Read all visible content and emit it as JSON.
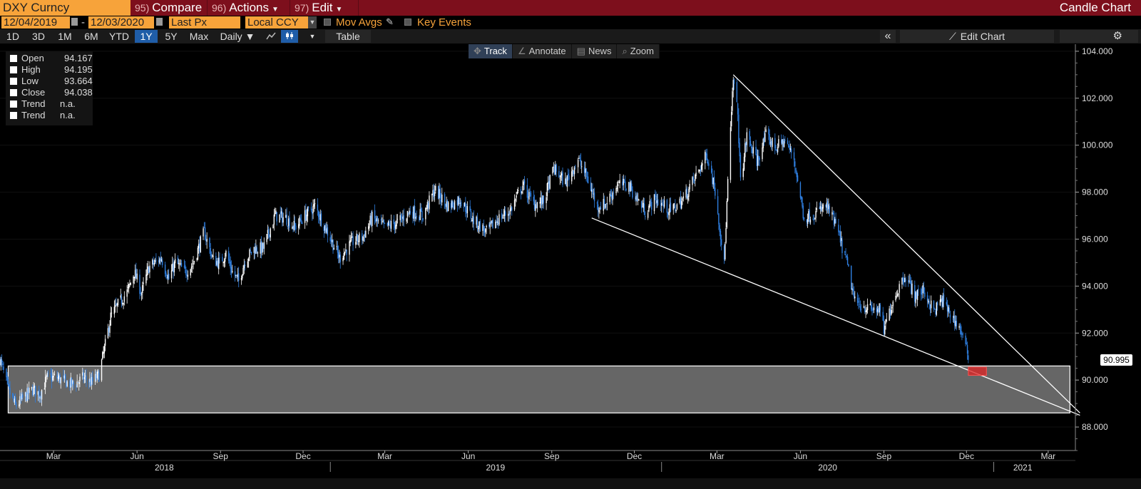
{
  "header": {
    "ticker": "DXY Curncy",
    "menus": [
      {
        "num": "95)",
        "label": "Compare",
        "caret": false
      },
      {
        "num": "96)",
        "label": "Actions",
        "caret": true
      },
      {
        "num": "97)",
        "label": "Edit",
        "caret": true
      }
    ],
    "chart_title": "Candle Chart"
  },
  "controls": {
    "start_date": "12/04/2019",
    "date_sep": "-",
    "end_date": "12/03/2020",
    "price_field": "Last Px",
    "currency": "Local CCY",
    "mov_avgs": "Mov Avgs",
    "key_events": "Key Events"
  },
  "toolbar": {
    "ranges": [
      "1D",
      "3D",
      "1M",
      "6M",
      "YTD",
      "1Y",
      "5Y",
      "Max"
    ],
    "active_range": "1Y",
    "period": "Daily ▼",
    "table": "Table",
    "collapse": "«",
    "edit_chart": "Edit Chart",
    "gear": "⚙"
  },
  "chart_tools": [
    {
      "icon": "✥",
      "label": "Track",
      "active": true
    },
    {
      "icon": "∠",
      "label": "Annotate",
      "active": false
    },
    {
      "icon": "▤",
      "label": "News",
      "active": false
    },
    {
      "icon": "⌕",
      "label": "Zoom",
      "active": false
    }
  ],
  "legend": [
    {
      "name": "Open",
      "value": "94.167"
    },
    {
      "name": "High",
      "value": "94.195"
    },
    {
      "name": "Low",
      "value": "93.664"
    },
    {
      "name": "Close",
      "value": "94.038"
    },
    {
      "name": "Trend",
      "value": "n.a."
    },
    {
      "name": "Trend",
      "value": "n.a."
    }
  ],
  "last_price": "90.995",
  "colors": {
    "up": "#ffffff",
    "down": "#2f7fe0",
    "accent": "#f7a33a",
    "bar": "#7d0f1c",
    "zone": "#666666",
    "marker": "#e02424"
  },
  "chart_data": {
    "type": "candlestick",
    "x_range": [
      "2018-01-01",
      "2021-03-31"
    ],
    "ylim": [
      87,
      104.3
    ],
    "y_ticks": [
      "88.000",
      "90.000",
      "92.000",
      "94.000",
      "96.000",
      "98.000",
      "100.000",
      "102.000",
      "104.000"
    ],
    "month_ticks": [
      {
        "date": "2018-03-01",
        "label": "Mar"
      },
      {
        "date": "2018-06-01",
        "label": "Jun"
      },
      {
        "date": "2018-09-01",
        "label": "Sep"
      },
      {
        "date": "2018-12-01",
        "label": "Dec"
      },
      {
        "date": "2019-03-01",
        "label": "Mar"
      },
      {
        "date": "2019-06-01",
        "label": "Jun"
      },
      {
        "date": "2019-09-01",
        "label": "Sep"
      },
      {
        "date": "2019-12-01",
        "label": "Dec"
      },
      {
        "date": "2020-03-01",
        "label": "Mar"
      },
      {
        "date": "2020-06-01",
        "label": "Jun"
      },
      {
        "date": "2020-09-01",
        "label": "Sep"
      },
      {
        "date": "2020-12-01",
        "label": "Dec"
      },
      {
        "date": "2021-03-01",
        "label": "Mar"
      }
    ],
    "years": [
      {
        "label": "2018",
        "center": "2018-07-01"
      },
      {
        "label": "2019",
        "center": "2019-07-01"
      },
      {
        "label": "2020",
        "center": "2020-07-01"
      },
      {
        "label": "2021",
        "center": "2021-02-01"
      }
    ],
    "year_dividers": [
      "2018-12-31",
      "2019-12-31",
      "2020-12-31"
    ],
    "price_path": [
      [
        "2018-01-01",
        90.9
      ],
      [
        "2018-01-10",
        89.6
      ],
      [
        "2018-01-18",
        88.9
      ],
      [
        "2018-01-26",
        89.2
      ],
      [
        "2018-02-06",
        89.6
      ],
      [
        "2018-02-14",
        89.4
      ],
      [
        "2018-02-22",
        90.1
      ],
      [
        "2018-03-05",
        90.1
      ],
      [
        "2018-03-15",
        89.9
      ],
      [
        "2018-03-23",
        89.8
      ],
      [
        "2018-04-03",
        90.1
      ],
      [
        "2018-04-12",
        89.9
      ],
      [
        "2018-04-20",
        90.2
      ],
      [
        "2018-04-27",
        91.5
      ],
      [
        "2018-05-03",
        92.7
      ],
      [
        "2018-05-11",
        93.2
      ],
      [
        "2018-05-22",
        93.8
      ],
      [
        "2018-05-29",
        94.6
      ],
      [
        "2018-06-06",
        93.7
      ],
      [
        "2018-06-14",
        94.8
      ],
      [
        "2018-06-21",
        95.0
      ],
      [
        "2018-06-28",
        95.2
      ],
      [
        "2018-07-06",
        94.3
      ],
      [
        "2018-07-13",
        95.0
      ],
      [
        "2018-07-24",
        94.6
      ],
      [
        "2018-08-01",
        94.9
      ],
      [
        "2018-08-14",
        96.3
      ],
      [
        "2018-08-24",
        95.1
      ],
      [
        "2018-08-31",
        95.0
      ],
      [
        "2018-09-07",
        95.4
      ],
      [
        "2018-09-14",
        94.6
      ],
      [
        "2018-09-21",
        94.2
      ],
      [
        "2018-09-28",
        95.1
      ],
      [
        "2018-10-08",
        95.6
      ],
      [
        "2018-10-18",
        95.6
      ],
      [
        "2018-10-31",
        97.0
      ],
      [
        "2018-11-12",
        96.9
      ],
      [
        "2018-11-22",
        96.5
      ],
      [
        "2018-12-03",
        97.0
      ],
      [
        "2018-12-14",
        97.4
      ],
      [
        "2018-12-28",
        96.3
      ],
      [
        "2019-01-10",
        95.2
      ],
      [
        "2019-01-25",
        95.9
      ],
      [
        "2019-02-05",
        96.1
      ],
      [
        "2019-02-15",
        96.9
      ],
      [
        "2019-03-01",
        96.5
      ],
      [
        "2019-03-15",
        96.7
      ],
      [
        "2019-03-29",
        97.2
      ],
      [
        "2019-04-12",
        97.0
      ],
      [
        "2019-04-25",
        98.1
      ],
      [
        "2019-05-10",
        97.4
      ],
      [
        "2019-05-23",
        97.7
      ],
      [
        "2019-06-07",
        96.8
      ],
      [
        "2019-06-21",
        96.3
      ],
      [
        "2019-07-05",
        96.9
      ],
      [
        "2019-07-17",
        97.2
      ],
      [
        "2019-07-31",
        98.3
      ],
      [
        "2019-08-12",
        97.5
      ],
      [
        "2019-08-23",
        97.6
      ],
      [
        "2019-09-03",
        99.0
      ],
      [
        "2019-09-16",
        98.4
      ],
      [
        "2019-09-30",
        99.4
      ],
      [
        "2019-10-10",
        98.6
      ],
      [
        "2019-10-21",
        97.4
      ],
      [
        "2019-10-30",
        97.5
      ],
      [
        "2019-11-12",
        98.3
      ],
      [
        "2019-11-25",
        98.3
      ],
      [
        "2019-12-04",
        97.7
      ],
      [
        "2019-12-13",
        97.2
      ],
      [
        "2019-12-24",
        97.7
      ],
      [
        "2020-01-10",
        97.2
      ],
      [
        "2020-01-24",
        97.7
      ],
      [
        "2020-02-07",
        98.7
      ],
      [
        "2020-02-19",
        99.6
      ],
      [
        "2020-02-28",
        98.1
      ],
      [
        "2020-03-06",
        95.9
      ],
      [
        "2020-03-09",
        94.9
      ],
      [
        "2020-03-13",
        98.4
      ],
      [
        "2020-03-19",
        102.8
      ],
      [
        "2020-03-24",
        101.3
      ],
      [
        "2020-03-27",
        98.4
      ],
      [
        "2020-04-03",
        100.4
      ],
      [
        "2020-04-14",
        99.3
      ],
      [
        "2020-04-24",
        100.4
      ],
      [
        "2020-05-05",
        99.9
      ],
      [
        "2020-05-15",
        100.2
      ],
      [
        "2020-05-25",
        99.4
      ],
      [
        "2020-06-05",
        96.9
      ],
      [
        "2020-06-17",
        97.1
      ],
      [
        "2020-06-30",
        97.4
      ],
      [
        "2020-07-10",
        96.6
      ],
      [
        "2020-07-22",
        95.0
      ],
      [
        "2020-07-31",
        93.3
      ],
      [
        "2020-08-07",
        93.2
      ],
      [
        "2020-08-17",
        93.0
      ],
      [
        "2020-08-27",
        93.0
      ],
      [
        "2020-09-01",
        92.1
      ],
      [
        "2020-09-10",
        93.3
      ],
      [
        "2020-09-24",
        94.5
      ],
      [
        "2020-10-05",
        93.6
      ],
      [
        "2020-10-15",
        93.8
      ],
      [
        "2020-10-26",
        92.9
      ],
      [
        "2020-11-04",
        93.4
      ],
      [
        "2020-11-13",
        92.8
      ],
      [
        "2020-11-24",
        92.2
      ],
      [
        "2020-12-03",
        91.0
      ]
    ],
    "lines": [
      {
        "name": "upper-trendline",
        "from": [
          "2020-03-19",
          103.0
        ],
        "to": [
          "2021-04-05",
          88.6
        ]
      },
      {
        "name": "lower-trendline",
        "from": [
          "2019-10-15",
          96.9
        ],
        "to": [
          "2021-04-05",
          88.5
        ]
      }
    ],
    "support_zone": {
      "x0": "2018-01-10",
      "x1": "2021-03-25",
      "y0": 88.6,
      "y1": 90.6
    },
    "marker": {
      "x0": "2020-12-03",
      "x1": "2020-12-23",
      "y0": 90.2,
      "y1": 90.55
    },
    "last": 90.995
  }
}
